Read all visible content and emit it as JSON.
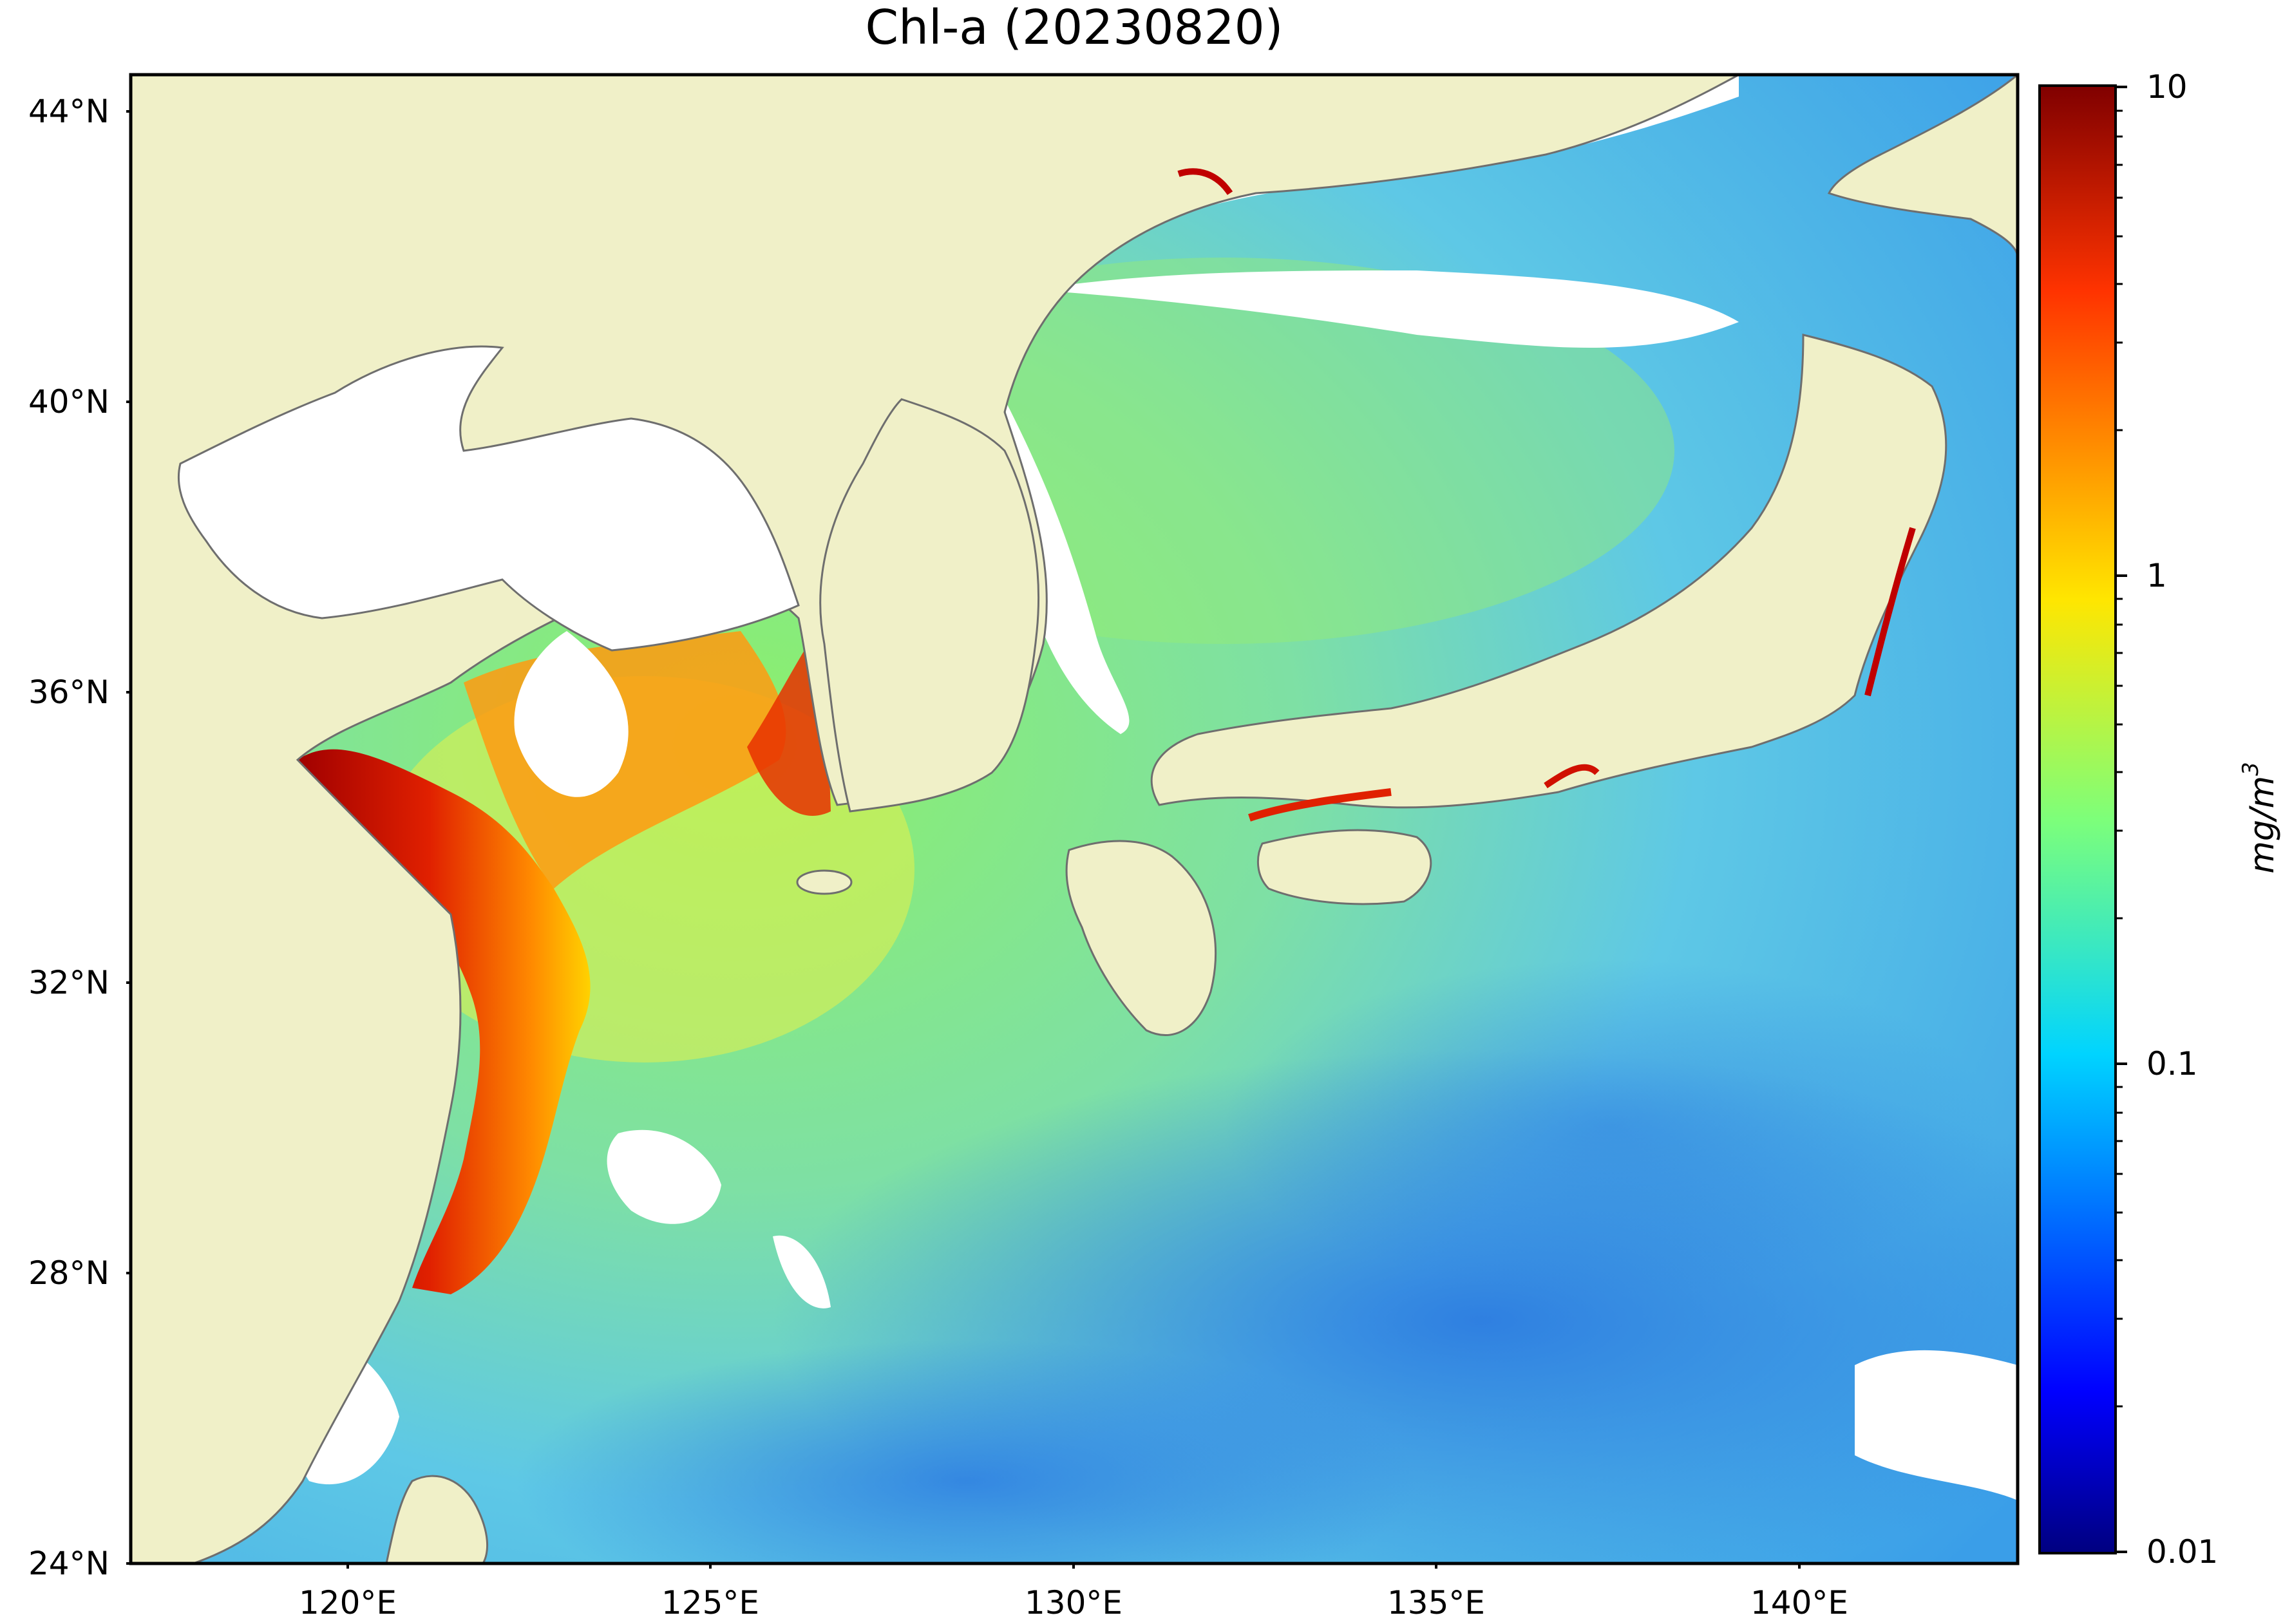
{
  "title": "Chl-a (20230820)",
  "lat_labels": [
    "44°N",
    "40°N",
    "36°N",
    "32°N",
    "28°N",
    "24°N"
  ],
  "lon_labels": [
    "120°E",
    "125°E",
    "130°E",
    "135°E",
    "140°E"
  ],
  "colorbar": {
    "tick_labels": [
      "10",
      "1",
      "0.1",
      "0.01"
    ],
    "unit": "mg/m",
    "unit_exp": "3",
    "scale": "log",
    "range": [
      0.01,
      10
    ],
    "colormap": "jet"
  },
  "extent": {
    "lon": [
      117,
      143
    ],
    "lat": [
      24,
      44.5
    ]
  },
  "colors": {
    "land": "#f0f0c8",
    "coast": "#6e6e6e",
    "cloud": "#ffffff",
    "frame": "#000000"
  }
}
